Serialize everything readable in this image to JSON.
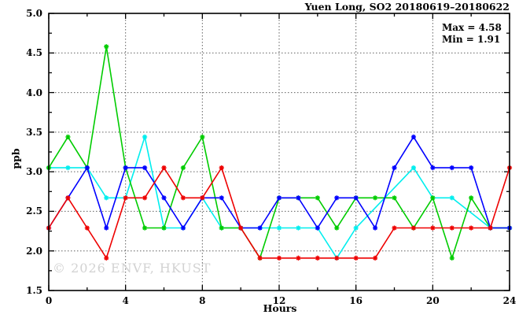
{
  "chart": {
    "title": "Yuen Long, SO2 20180619–20180622",
    "stats": {
      "max_label": "Max = 4.58",
      "min_label": "Min = 1.91"
    },
    "ylabel": "ppb",
    "xlabel": "Hours",
    "watermark": "© 2026 ENVF, HKUST"
  },
  "chart_data": {
    "type": "line",
    "title": "Yuen Long, SO2 20180619–20180622",
    "xlabel": "Hours",
    "ylabel": "ppb",
    "xlim": [
      0,
      24
    ],
    "ylim": [
      1.5,
      5.0
    ],
    "x_ticks": [
      0,
      4,
      8,
      12,
      16,
      20,
      24
    ],
    "y_ticks": [
      1.5,
      2.0,
      2.5,
      3.0,
      3.5,
      4.0,
      4.5,
      5.0
    ],
    "x_minor_step": 2,
    "y_minor_step": 0.25,
    "grid_x": [
      4,
      8,
      12,
      16,
      20,
      24
    ],
    "grid_y": [
      2.0,
      2.5,
      3.0,
      3.5,
      4.0,
      4.5
    ],
    "grid": "dotted",
    "legend_position": "none",
    "max": 4.58,
    "min": 1.91,
    "x": [
      0,
      1,
      2,
      3,
      4,
      5,
      6,
      7,
      8,
      9,
      10,
      11,
      12,
      13,
      14,
      15,
      16,
      17,
      18,
      19,
      20,
      21,
      22,
      23,
      24
    ],
    "series": [
      {
        "name": "cyan-series",
        "color": "#00eeee",
        "values": [
          3.05,
          3.05,
          3.05,
          2.67,
          2.67,
          3.44,
          2.29,
          2.29,
          2.67,
          2.29,
          2.29,
          2.29,
          2.29,
          2.29,
          2.29,
          1.91,
          2.29,
          null,
          null,
          3.05,
          2.67,
          2.67,
          null,
          2.29,
          2.29
        ]
      },
      {
        "name": "green-series",
        "color": "#00cc00",
        "values": [
          3.05,
          3.44,
          3.05,
          4.58,
          3.05,
          2.29,
          2.29,
          3.05,
          3.44,
          2.29,
          2.29,
          1.91,
          2.67,
          2.67,
          2.67,
          2.29,
          2.67,
          2.67,
          2.67,
          2.29,
          2.67,
          1.91,
          2.67,
          2.29,
          2.29
        ]
      },
      {
        "name": "blue-series",
        "color": "#0000ff",
        "values": [
          2.29,
          2.67,
          3.05,
          2.29,
          3.05,
          3.05,
          2.67,
          2.29,
          2.67,
          2.67,
          2.29,
          2.29,
          2.67,
          2.67,
          2.29,
          2.67,
          2.67,
          2.29,
          3.05,
          3.44,
          3.05,
          3.05,
          3.05,
          2.29,
          2.29
        ]
      },
      {
        "name": "red-series",
        "color": "#ee0000",
        "values": [
          2.29,
          2.67,
          2.29,
          1.91,
          2.67,
          2.67,
          3.05,
          2.67,
          2.67,
          3.05,
          2.29,
          1.91,
          1.91,
          1.91,
          1.91,
          1.91,
          1.91,
          1.91,
          2.29,
          2.29,
          2.29,
          2.29,
          2.29,
          2.29,
          3.05
        ]
      }
    ],
    "colors": {
      "axis": "#000000",
      "grid": "#606060",
      "watermark": "#d2d2d2",
      "background": "#ffffff"
    }
  }
}
